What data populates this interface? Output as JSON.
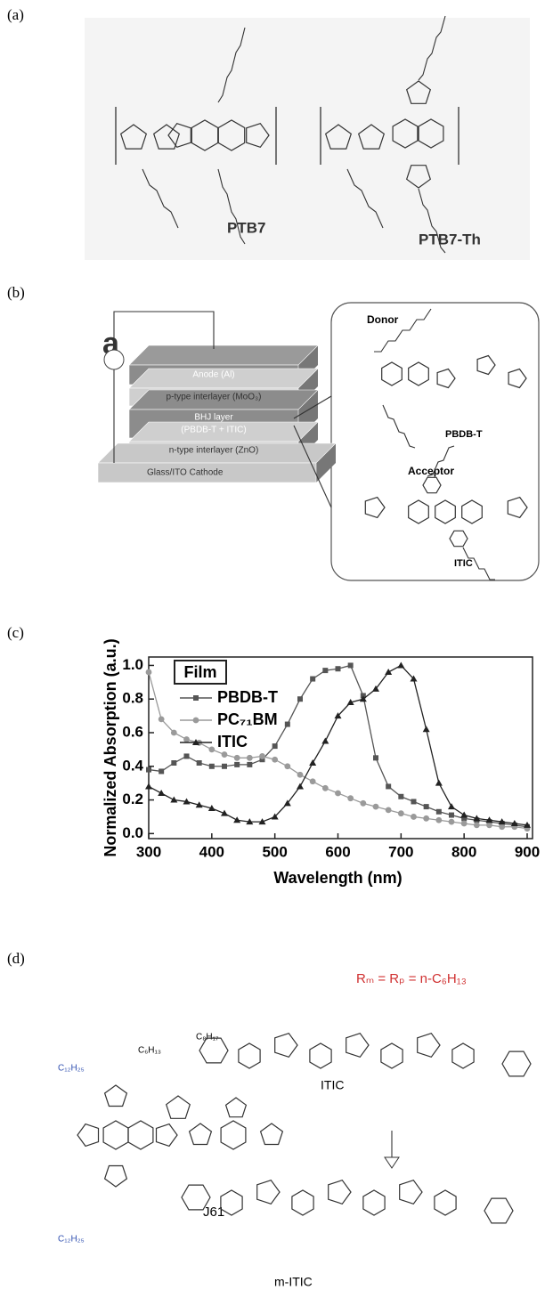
{
  "panel_labels": [
    "(a)",
    "(b)",
    "(c)",
    "(d)"
  ],
  "panel_a": {
    "labels": [
      "PTB7",
      "PTB7-Th"
    ]
  },
  "panel_b": {
    "heading": "a",
    "layers": [
      "Anode (Al)",
      "p-type interlayer (MoO₃)",
      "BHJ layer",
      "(PBDB-T + ITIC)",
      "n-type interlayer (ZnO)",
      "Glass/ITO Cathode"
    ],
    "donor_title": "Donor",
    "donor_name": "PBDB-T",
    "acceptor_title": "Acceptor",
    "acceptor_name": "ITIC"
  },
  "chart_data": {
    "type": "line",
    "ylabel": "Normalized Absorption (a.u.)",
    "xlabel": "Wavelength (nm)",
    "legend_title": "Film",
    "x": [
      300,
      320,
      340,
      360,
      380,
      400,
      420,
      440,
      460,
      480,
      500,
      520,
      540,
      560,
      580,
      600,
      620,
      640,
      660,
      680,
      700,
      720,
      740,
      760,
      780,
      800,
      820,
      840,
      860,
      880,
      900
    ],
    "series": [
      {
        "name": "PBDB-T",
        "color": "#555555",
        "marker": "square",
        "values": [
          0.38,
          0.37,
          0.42,
          0.46,
          0.42,
          0.4,
          0.4,
          0.41,
          0.41,
          0.44,
          0.52,
          0.65,
          0.8,
          0.92,
          0.97,
          0.98,
          1.0,
          0.82,
          0.45,
          0.28,
          0.22,
          0.19,
          0.16,
          0.13,
          0.11,
          0.09,
          0.08,
          0.07,
          0.06,
          0.05,
          0.04
        ]
      },
      {
        "name": "PC₇₁BM",
        "color": "#9a9a9a",
        "marker": "circle",
        "values": [
          0.96,
          0.68,
          0.6,
          0.56,
          0.54,
          0.5,
          0.47,
          0.45,
          0.45,
          0.46,
          0.44,
          0.4,
          0.35,
          0.31,
          0.27,
          0.24,
          0.21,
          0.18,
          0.16,
          0.14,
          0.12,
          0.1,
          0.09,
          0.08,
          0.07,
          0.06,
          0.05,
          0.05,
          0.04,
          0.04,
          0.03
        ]
      },
      {
        "name": "ITIC",
        "color": "#222222",
        "marker": "triangle",
        "values": [
          0.28,
          0.24,
          0.2,
          0.19,
          0.17,
          0.15,
          0.12,
          0.08,
          0.07,
          0.07,
          0.1,
          0.18,
          0.28,
          0.42,
          0.55,
          0.7,
          0.78,
          0.8,
          0.86,
          0.96,
          1.0,
          0.92,
          0.62,
          0.3,
          0.16,
          0.11,
          0.09,
          0.08,
          0.07,
          0.06,
          0.05
        ]
      }
    ],
    "xlim": [
      300,
      900
    ],
    "ylim": [
      -0.03,
      1.05
    ],
    "xticks": [
      300,
      400,
      500,
      600,
      700,
      800,
      900
    ],
    "yticks": [
      {
        "value": 0,
        "label": "0.0"
      },
      0.2,
      0.4,
      0.6,
      0.8,
      {
        "value": 1,
        "label": "1.0"
      }
    ]
  },
  "panel_d": {
    "formula": "Rₘ = Rₚ = n-C₆H₁₃",
    "labels": [
      "ITIC",
      "J61",
      "m-ITIC"
    ],
    "substituents": [
      "C₁₂H₂₅",
      "C₈H₁₇",
      "C₆H₁₃",
      "C₁₂H₂₅"
    ]
  }
}
